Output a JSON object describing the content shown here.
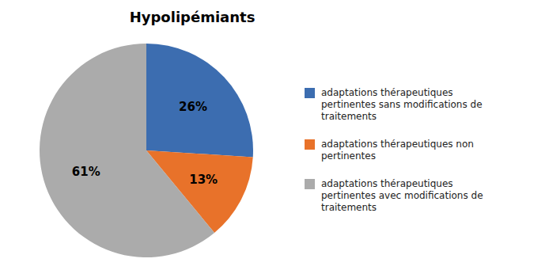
{
  "chart_data": {
    "type": "pie",
    "title": "Hypolipémiants",
    "categories": [
      "adaptations thérapeutiques\npertinentes sans modifications de\ntraitements",
      "adaptations thérapeutiques non\npertinentes",
      "adaptations thérapeutiques\npertinentes avec modifications de\ntraitements"
    ],
    "values": [
      26,
      13,
      61
    ],
    "value_labels": [
      "26%",
      "13%",
      "61%"
    ],
    "colors": [
      "#3C6DB0",
      "#E8722A",
      "#ABABAB"
    ],
    "data_labels": true,
    "legend": "right"
  }
}
